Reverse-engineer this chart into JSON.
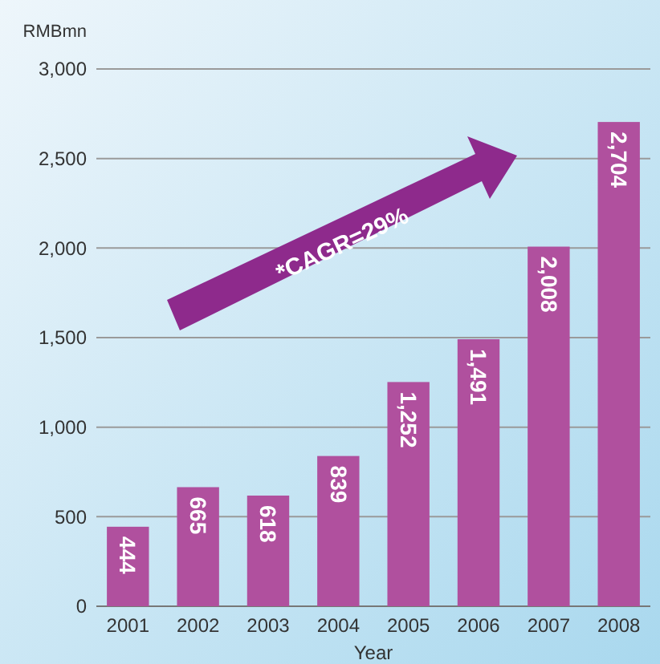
{
  "chart_data": {
    "type": "bar",
    "ylabel": "RMBmn",
    "xlabel": "Year",
    "categories": [
      "2001",
      "2002",
      "2003",
      "2004",
      "2005",
      "2006",
      "2007",
      "2008"
    ],
    "values": [
      444,
      665,
      618,
      839,
      1252,
      1491,
      2008,
      2704
    ],
    "value_labels": [
      "444",
      "665",
      "618",
      "839",
      "1,252",
      "1,491",
      "2,008",
      "2,704"
    ],
    "color": "#b0509e",
    "ylim": [
      0,
      3000
    ],
    "yticks": [
      0,
      {
        "value": 500,
        "label": "500"
      },
      {
        "value": 1000,
        "label": "1,000"
      },
      {
        "value": 1500,
        "label": "1,500"
      },
      {
        "value": 2000,
        "label": "2,000"
      },
      {
        "value": 2500,
        "label": "2,500"
      },
      {
        "value": 3000,
        "label": "3,000"
      }
    ],
    "grid": "y",
    "annotations": [
      "*CAGR=29%"
    ]
  }
}
